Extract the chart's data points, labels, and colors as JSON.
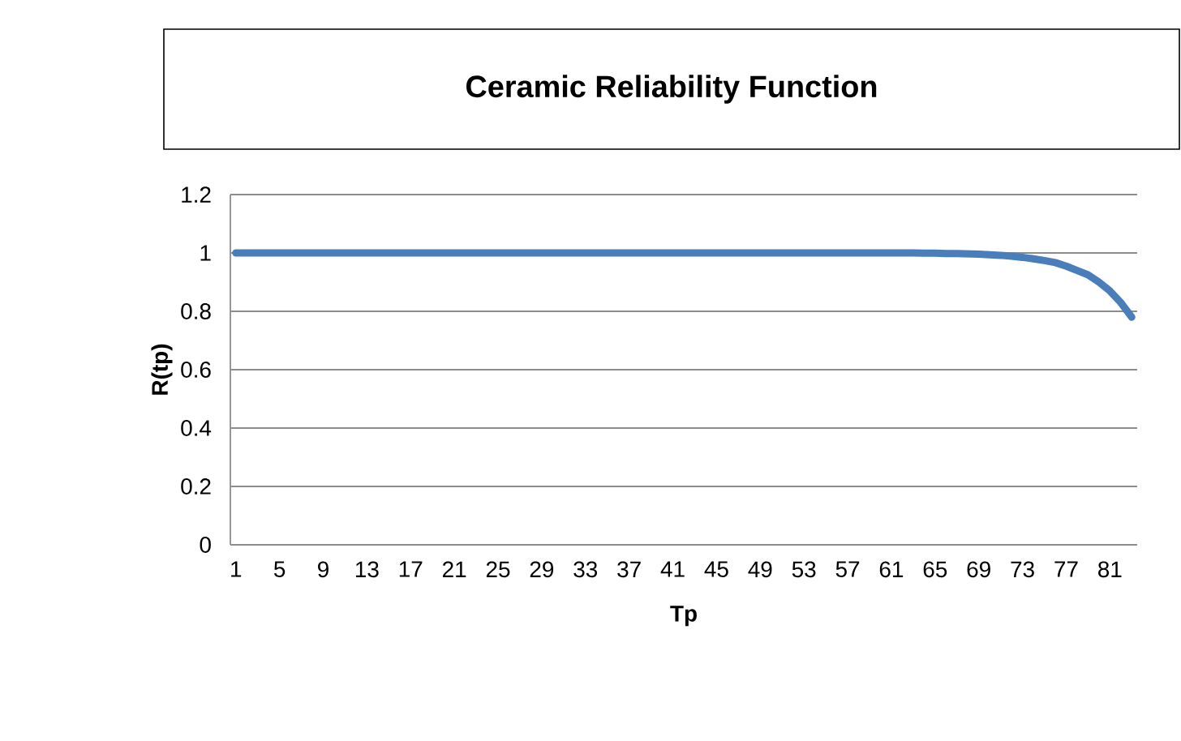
{
  "chart_data": {
    "type": "line",
    "title": "Ceramic Reliability Function",
    "xlabel": "Tp",
    "ylabel": "R(tp)",
    "categories": [
      "1",
      null,
      null,
      null,
      "5",
      null,
      null,
      null,
      "9",
      null,
      null,
      null,
      "13",
      null,
      null,
      null,
      "17",
      null,
      null,
      null,
      "21",
      null,
      null,
      null,
      "25",
      null,
      null,
      null,
      "29",
      null,
      null,
      null,
      "33",
      null,
      null,
      null,
      "37",
      null,
      null,
      null,
      "41",
      null,
      null,
      null,
      "45",
      null,
      null,
      null,
      "49",
      null,
      null,
      null,
      "53",
      null,
      null,
      null,
      "57",
      null,
      null,
      null,
      "61",
      null,
      null,
      null,
      "65",
      null,
      null,
      null,
      "69",
      null,
      null,
      null,
      "73",
      null,
      null,
      null,
      "77",
      null,
      null,
      null,
      "81",
      null,
      null
    ],
    "values": [
      1,
      1,
      1,
      1,
      1,
      1,
      1,
      1,
      1,
      1,
      1,
      1,
      1,
      1,
      1,
      1,
      1,
      1,
      1,
      1,
      1,
      1,
      1,
      1,
      1,
      1,
      1,
      1,
      1,
      1,
      1,
      1,
      1,
      1,
      1,
      1,
      1,
      1,
      1,
      1,
      1,
      1,
      1,
      1,
      1,
      1,
      1,
      1,
      1,
      1,
      1,
      1,
      1,
      1,
      1,
      1,
      1,
      1,
      1,
      1,
      1,
      1,
      1,
      0.999,
      0.999,
      0.998,
      0.998,
      0.997,
      0.996,
      0.994,
      0.992,
      0.989,
      0.985,
      0.98,
      0.974,
      0.967,
      0.955,
      0.94,
      0.925,
      0.9,
      0.87,
      0.83,
      0.78
    ],
    "color": "#4a7ebb",
    "ylim": [
      0,
      1.2
    ],
    "yticks": [
      0,
      0.2,
      0.4,
      0.6,
      0.8,
      1,
      1.2
    ],
    "grid": "y"
  }
}
